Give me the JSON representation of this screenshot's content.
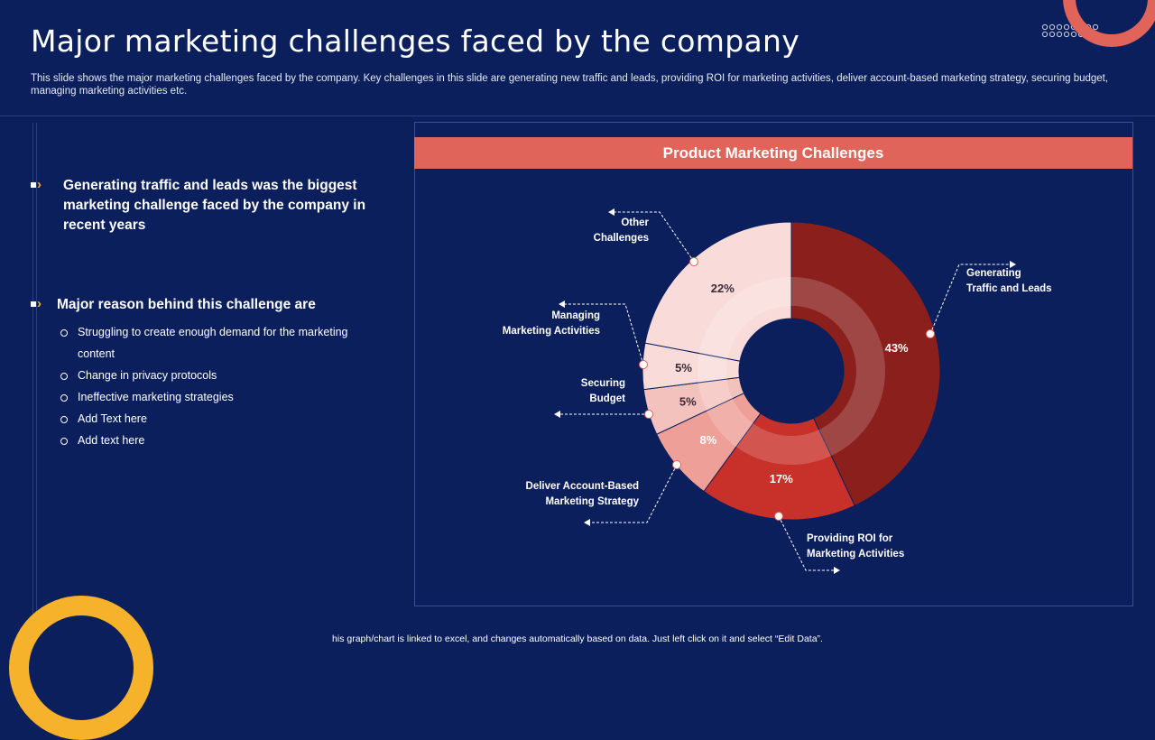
{
  "slide": {
    "title": "Major marketing challenges faced by the company",
    "subtitle": "This slide shows the major marketing challenges faced by the company. Key challenges in this slide are generating new traffic and leads, providing ROI for marketing activities, deliver account-based marketing strategy, securing budget, managing marketing activities etc.",
    "main_point": "Generating traffic and leads was the biggest marketing challenge faced by the company in recent years",
    "reason_heading": "Major reason behind this challenge are",
    "reasons": [
      "Struggling to create enough demand for the marketing content",
      "Change in privacy protocols",
      "Ineffective  marketing strategies",
      "Add Text here",
      "Add text here"
    ],
    "footer": "his graph/chart is linked to excel, and changes automatically based on data. Just left click on it and select “Edit Data”."
  },
  "colors": {
    "background": "#0b1f5c",
    "accent_coral": "#e0645a",
    "accent_yellow": "#f5b22a"
  },
  "chart_data": {
    "type": "pie",
    "title": "Product Marketing Challenges",
    "categories": [
      "Generating Traffic and Leads",
      "Providing  ROI for Marketing Activities",
      "Deliver Account-Based Marketing Strategy",
      "Securing Budget",
      "Managing Marketing Activities",
      "Other Challenges"
    ],
    "values": [
      43,
      17,
      8,
      5,
      5,
      22
    ],
    "value_labels": [
      "43%",
      "17%",
      "8%",
      "5%",
      "5%",
      "22%"
    ],
    "colors": [
      "#8a1f1b",
      "#c8302a",
      "#ee9f98",
      "#f4c2bd",
      "#f9dcd9",
      "#f9dcd9"
    ],
    "hole": "donut"
  }
}
